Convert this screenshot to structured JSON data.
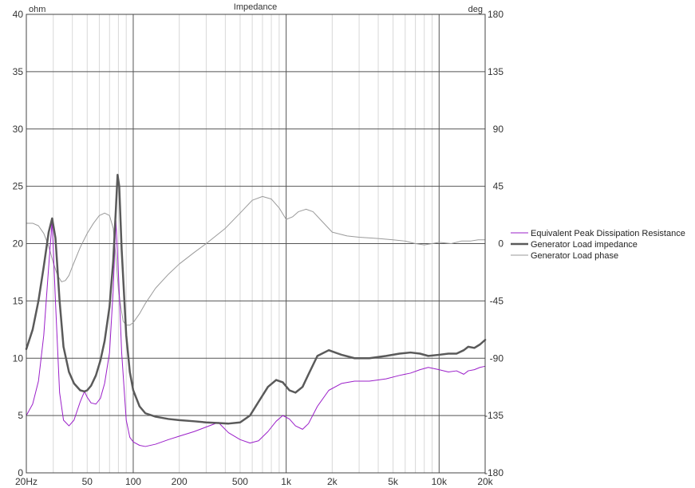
{
  "chart_data": {
    "type": "line",
    "title": "Impedance",
    "left_unit": "ohm",
    "right_unit": "deg",
    "x_scale": "log",
    "xlim": [
      20,
      20000
    ],
    "ylim_left": [
      0,
      40
    ],
    "ylim_right": [
      -180,
      180
    ],
    "grid": true,
    "legend_position": "right",
    "x_ticks": [
      {
        "value": 20,
        "label": "20Hz"
      },
      {
        "value": 50,
        "label": "50"
      },
      {
        "value": 100,
        "label": "100"
      },
      {
        "value": 200,
        "label": "200"
      },
      {
        "value": 500,
        "label": "500"
      },
      {
        "value": 1000,
        "label": "1k"
      },
      {
        "value": 2000,
        "label": "2k"
      },
      {
        "value": 5000,
        "label": "5k"
      },
      {
        "value": 10000,
        "label": "10k"
      },
      {
        "value": 20000,
        "label": "20k"
      }
    ],
    "y_left_ticks": [
      0,
      5,
      10,
      15,
      20,
      25,
      30,
      35,
      40
    ],
    "y_right_ticks": [
      -180,
      -135,
      -90,
      -45,
      0,
      45,
      90,
      135,
      180
    ],
    "series": [
      {
        "name": "Equivalent Peak Dissipation Resistance",
        "axis": "left",
        "color": "#9b1fc9",
        "x": [
          20,
          22,
          24,
          26,
          28,
          29.5,
          31,
          33,
          35,
          38,
          41,
          45,
          48,
          50,
          53,
          57,
          61,
          65,
          70,
          74,
          77,
          80,
          84,
          90,
          95,
          100,
          110,
          120,
          140,
          170,
          200,
          250,
          300,
          360,
          420,
          500,
          580,
          660,
          760,
          860,
          950,
          1050,
          1150,
          1280,
          1400,
          1600,
          1900,
          2300,
          2800,
          3500,
          4500,
          5500,
          6500,
          7500,
          8500,
          10000,
          11500,
          13000,
          14500,
          15500,
          17000,
          18500,
          20000
        ],
        "y": [
          5.0,
          6.0,
          8.0,
          12.0,
          18.0,
          22.0,
          15.0,
          7.0,
          4.6,
          4.1,
          4.6,
          6.2,
          7.1,
          6.6,
          6.1,
          6.0,
          6.5,
          7.8,
          10.5,
          16.0,
          22.0,
          17.5,
          10.5,
          4.6,
          3.1,
          2.7,
          2.4,
          2.3,
          2.5,
          2.9,
          3.2,
          3.6,
          4.0,
          4.4,
          3.5,
          2.9,
          2.6,
          2.8,
          3.6,
          4.5,
          5.0,
          4.7,
          4.1,
          3.8,
          4.3,
          5.8,
          7.2,
          7.8,
          8.0,
          8.0,
          8.2,
          8.5,
          8.7,
          9.0,
          9.2,
          9.0,
          8.8,
          8.9,
          8.6,
          8.9,
          9.0,
          9.2,
          9.3
        ]
      },
      {
        "name": "Generator Load impedance",
        "axis": "left",
        "color": "#5a5a5a",
        "x": [
          20,
          22,
          24,
          26,
          28,
          29.5,
          31,
          33,
          35,
          38,
          41,
          45,
          48,
          50,
          53,
          57,
          61,
          65,
          70,
          74,
          77,
          79,
          81,
          84,
          90,
          95,
          100,
          110,
          120,
          140,
          170,
          200,
          250,
          300,
          360,
          420,
          500,
          580,
          660,
          760,
          860,
          950,
          1050,
          1150,
          1280,
          1400,
          1600,
          1900,
          2300,
          2800,
          3500,
          4500,
          5500,
          6500,
          7500,
          8500,
          10000,
          11500,
          13000,
          14500,
          15500,
          17000,
          18500,
          20000
        ],
        "y": [
          10.8,
          12.5,
          15.0,
          18.0,
          21.0,
          22.2,
          20.5,
          15.0,
          11.0,
          8.8,
          7.8,
          7.2,
          7.1,
          7.2,
          7.6,
          8.5,
          9.8,
          11.5,
          14.5,
          18.5,
          23.0,
          26.0,
          25.0,
          19.5,
          12.0,
          8.8,
          7.2,
          5.8,
          5.2,
          4.9,
          4.7,
          4.6,
          4.5,
          4.4,
          4.35,
          4.3,
          4.4,
          5.0,
          6.2,
          7.5,
          8.1,
          7.9,
          7.2,
          7.0,
          7.5,
          8.6,
          10.2,
          10.7,
          10.3,
          10.0,
          10.0,
          10.2,
          10.4,
          10.5,
          10.4,
          10.2,
          10.3,
          10.4,
          10.4,
          10.7,
          11.0,
          10.9,
          11.2,
          11.6
        ]
      },
      {
        "name": "Generator Load phase",
        "axis": "right",
        "color": "#9a9a9a",
        "x": [
          20,
          22,
          24,
          26,
          28,
          30,
          32,
          34,
          36,
          38,
          40,
          45,
          50,
          55,
          60,
          65,
          70,
          74,
          77,
          80,
          83,
          86,
          90,
          95,
          100,
          110,
          120,
          140,
          170,
          200,
          250,
          300,
          400,
          500,
          600,
          700,
          800,
          900,
          1000,
          1100,
          1200,
          1350,
          1500,
          1700,
          2000,
          2500,
          3000,
          4000,
          5000,
          6000,
          7000,
          8000,
          9000,
          10000,
          12000,
          14000,
          16000,
          18000,
          20000
        ],
        "y": [
          16,
          16,
          14,
          8,
          -2,
          -15,
          -25,
          -30,
          -29,
          -25,
          -18,
          -3,
          8,
          16,
          22,
          24,
          22,
          12,
          -10,
          -36,
          -50,
          -61,
          -64,
          -64,
          -62,
          -55,
          -47,
          -35,
          -24,
          -16,
          -7,
          0,
          12,
          24,
          34,
          37,
          35,
          28,
          19,
          21,
          25,
          27,
          25,
          18,
          9,
          6,
          5,
          4,
          3,
          2,
          0,
          -1,
          0,
          1,
          0,
          2,
          2,
          3,
          3
        ]
      }
    ]
  }
}
